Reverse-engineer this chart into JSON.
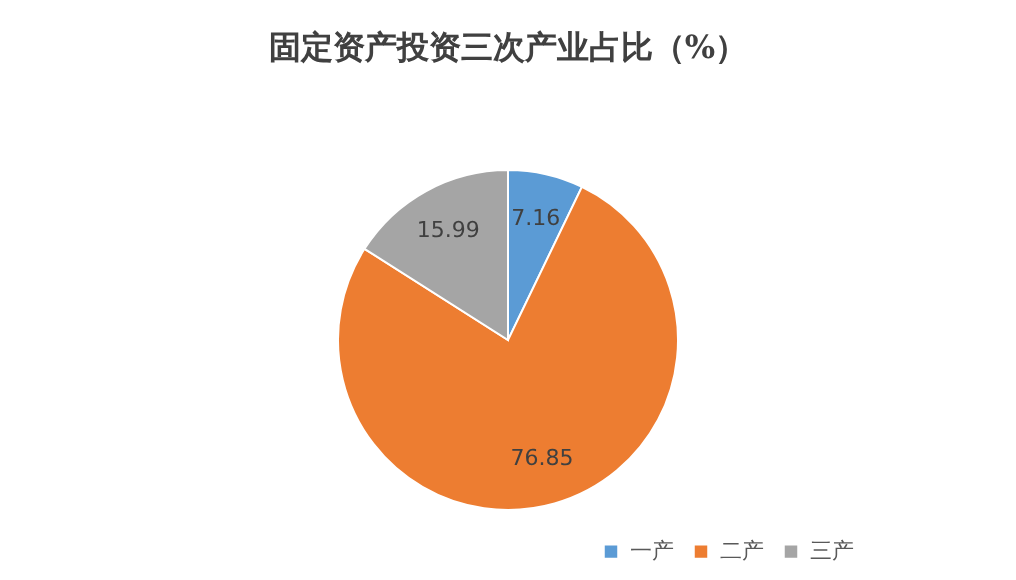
{
  "chart_data": {
    "type": "pie",
    "title": "固定资产投资三次产业占比（%）",
    "categories": [
      "一产",
      "二产",
      "三产"
    ],
    "values": [
      7.16,
      76.85,
      15.99
    ],
    "colors": [
      "#5b9bd5",
      "#ed7d31",
      "#a5a5a5"
    ],
    "data_labels": true,
    "legend": "bottom right"
  }
}
